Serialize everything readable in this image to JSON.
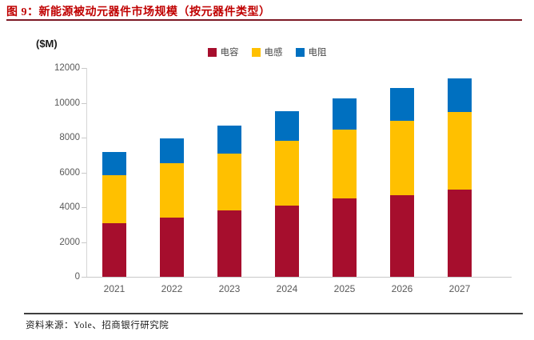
{
  "page": {
    "title": "图 9：新能源被动元器件市场规模（按元器件类型）",
    "footer_source": "资料来源：Yole、招商银行研究院"
  },
  "chart_data": {
    "type": "bar",
    "stacked": true,
    "title": "新能源被动元器件市场规模（按元器件类型）",
    "unit_label": "($M)",
    "xlabel": "",
    "ylabel": "($M)",
    "categories": [
      "2021",
      "2022",
      "2023",
      "2024",
      "2025",
      "2026",
      "2027"
    ],
    "series": [
      {
        "name": "电容",
        "color": "#a60e2d",
        "values": [
          3100,
          3400,
          3800,
          4100,
          4500,
          4700,
          5000
        ]
      },
      {
        "name": "电感",
        "color": "#ffc000",
        "values": [
          2750,
          3150,
          3300,
          3700,
          3950,
          4250,
          4450
        ]
      },
      {
        "name": "电阻",
        "color": "#0070c0",
        "values": [
          1300,
          1400,
          1600,
          1700,
          1800,
          1900,
          1950
        ]
      }
    ],
    "totals": [
      7150,
      7950,
      8700,
      9500,
      10250,
      10850,
      11400
    ],
    "ylim": [
      0,
      12000
    ],
    "yticks": [
      0,
      2000,
      4000,
      6000,
      8000,
      10000,
      12000
    ],
    "grid": false,
    "legend_position": "top-center"
  },
  "colors": {
    "title_red": "#c00000",
    "bar_capacitor_red": "#a60e2d",
    "bar_inductor_gold": "#ffc000",
    "bar_resistor_blue": "#0070c0",
    "axis_text_gray": "#595959",
    "axis_line_gray": "#d6d6d6",
    "footer_line_dark": "#3f3f3f"
  }
}
